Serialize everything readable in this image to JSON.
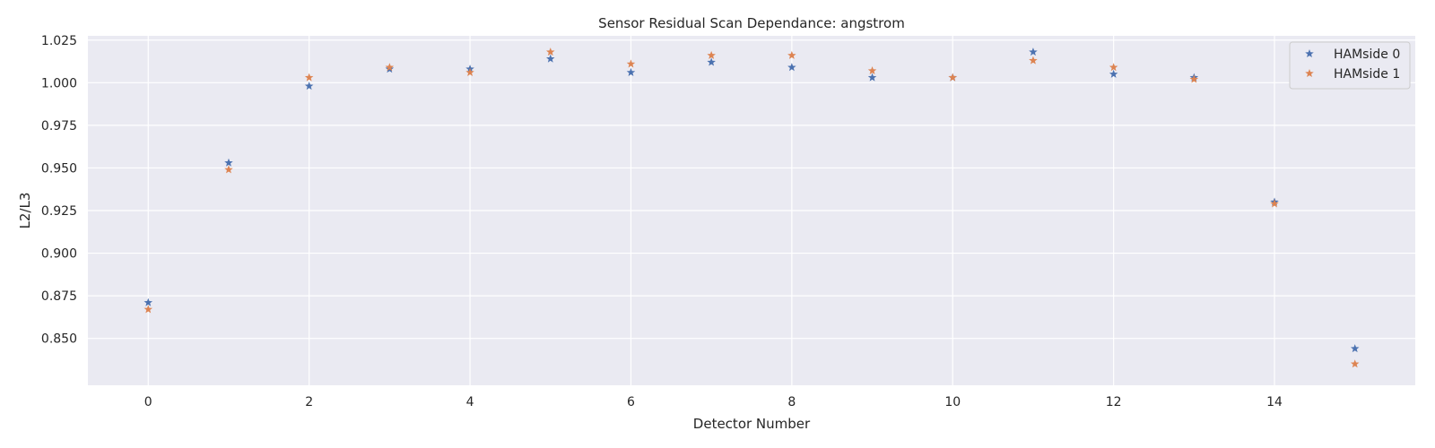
{
  "chart_data": {
    "type": "scatter",
    "title": "Sensor Residual Scan Dependance: angstrom",
    "xlabel": "Detector Number",
    "ylabel": "L2/L3",
    "xlim": [
      -0.75,
      15.75
    ],
    "ylim": [
      0.8225,
      1.0275
    ],
    "xticks": [
      0,
      2,
      4,
      6,
      8,
      10,
      12,
      14
    ],
    "xtick_labels": [
      "0",
      "2",
      "4",
      "6",
      "8",
      "10",
      "12",
      "14"
    ],
    "yticks": [
      0.85,
      0.875,
      0.9,
      0.925,
      0.95,
      0.975,
      1.0,
      1.025
    ],
    "ytick_labels": [
      "0.850",
      "0.875",
      "0.900",
      "0.925",
      "0.950",
      "0.975",
      "1.000",
      "1.025"
    ],
    "grid": true,
    "legend_position": "top-right",
    "marker": "star",
    "x": [
      0,
      1,
      2,
      3,
      4,
      5,
      6,
      7,
      8,
      9,
      10,
      11,
      12,
      13,
      14,
      15
    ],
    "series": [
      {
        "name": "HAMside 0",
        "color": "#4c72b0",
        "values": [
          0.871,
          0.953,
          0.998,
          1.008,
          1.008,
          1.014,
          1.006,
          1.012,
          1.009,
          1.003,
          1.003,
          1.018,
          1.005,
          1.003,
          0.93,
          0.844
        ]
      },
      {
        "name": "HAMside 1",
        "color": "#dd8452",
        "values": [
          0.867,
          0.949,
          1.003,
          1.009,
          1.006,
          1.018,
          1.011,
          1.016,
          1.016,
          1.007,
          1.003,
          1.013,
          1.009,
          1.002,
          0.929,
          0.835
        ]
      }
    ],
    "colors": {
      "plot_background": "#eaeaf2",
      "grid": "#ffffff"
    }
  }
}
